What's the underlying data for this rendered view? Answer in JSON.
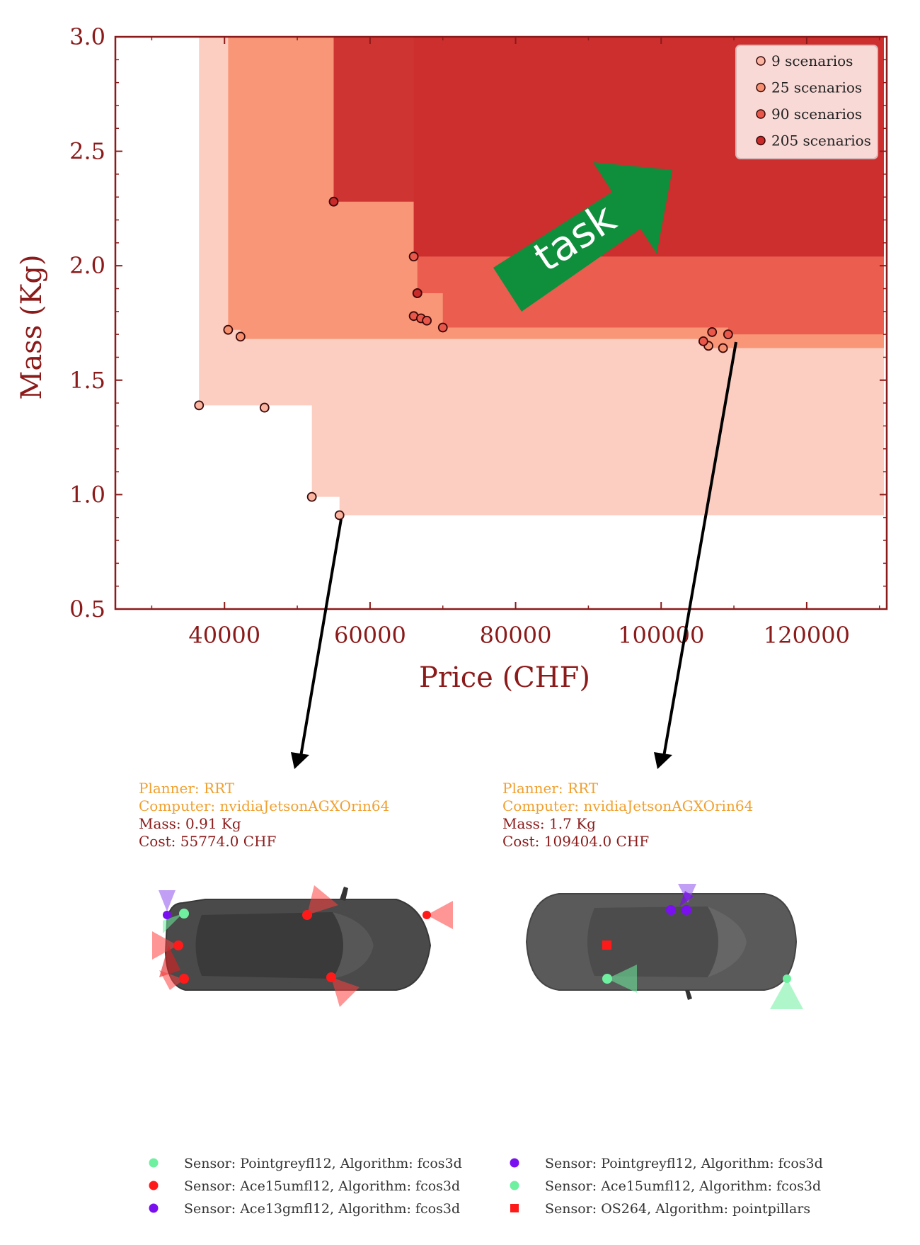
{
  "chart_data": {
    "type": "scatter",
    "xlabel": "Price (CHF)",
    "ylabel": "Mass (Kg)",
    "xlim": [
      25000,
      131000
    ],
    "ylim": [
      0.5,
      3.0
    ],
    "xticks": [
      40000,
      60000,
      80000,
      100000,
      120000
    ],
    "yticks": [
      0.5,
      1.0,
      1.5,
      2.0,
      2.5,
      3.0
    ],
    "annotation": "task",
    "legend_position": "top-right",
    "series": [
      {
        "name": "9 scenarios",
        "color": "#fbb4a0",
        "region": [
          [
            36500,
            1.39
          ],
          [
            52000,
            0.99
          ],
          [
            55800,
            0.91
          ]
        ],
        "points": [
          [
            36500,
            1.39
          ],
          [
            45500,
            1.38
          ],
          [
            52000,
            0.99
          ],
          [
            55800,
            0.91
          ]
        ]
      },
      {
        "name": "25 scenarios",
        "color": "#f7906f",
        "region": [
          [
            40500,
            1.72
          ],
          [
            42200,
            1.68
          ],
          [
            106500,
            1.64
          ]
        ],
        "points": [
          [
            40500,
            1.72
          ],
          [
            42200,
            1.69
          ],
          [
            106500,
            1.65
          ],
          [
            108500,
            1.64
          ]
        ]
      },
      {
        "name": "90 scenarios",
        "color": "#e8574a",
        "region": [
          [
            66000,
            2.04
          ],
          [
            66500,
            1.88
          ],
          [
            70000,
            1.73
          ],
          [
            109200,
            1.7
          ]
        ],
        "points": [
          [
            66000,
            2.04
          ],
          [
            66500,
            1.88
          ],
          [
            66000,
            1.78
          ],
          [
            67000,
            1.77
          ],
          [
            67800,
            1.76
          ],
          [
            70000,
            1.73
          ],
          [
            105800,
            1.67
          ],
          [
            107000,
            1.71
          ],
          [
            109200,
            1.7
          ]
        ]
      },
      {
        "name": "205 scenarios",
        "color": "#c92a2a",
        "region": [
          [
            55000,
            2.28
          ],
          [
            66000,
            2.04
          ]
        ],
        "points": [
          [
            55000,
            2.28
          ],
          [
            66500,
            1.88
          ]
        ]
      }
    ]
  },
  "configs": [
    {
      "planner": "Planner: RRT",
      "computer": "Computer: nvidiaJetsonAGXOrin64",
      "mass": "Mass: 0.91 Kg",
      "cost": "Cost: 55774.0 CHF"
    },
    {
      "planner": "Planner: RRT",
      "computer": "Computer: nvidiaJetsonAGXOrin64",
      "mass": "Mass: 1.7 Kg",
      "cost": "Cost: 109404.0 CHF"
    }
  ],
  "sensor_legend": {
    "left": [
      {
        "label": "Sensor: Pointgreyfl12, Algorithm: fcos3d",
        "color": "#6ef0a0",
        "marker": "circle"
      },
      {
        "label": "Sensor: Ace15umfl12, Algorithm: fcos3d",
        "color": "#ff1a1a",
        "marker": "circle"
      },
      {
        "label": "Sensor: Ace13gmfl12, Algorithm: fcos3d",
        "color": "#7a10f0",
        "marker": "circle"
      }
    ],
    "right": [
      {
        "label": "Sensor: Pointgreyfl12, Algorithm: fcos3d",
        "color": "#7a10f0",
        "marker": "circle"
      },
      {
        "label": "Sensor: Ace15umfl12, Algorithm: fcos3d",
        "color": "#6ef0a0",
        "marker": "circle"
      },
      {
        "label": "Sensor: OS264, Algorithm: pointpillars",
        "color": "#ff1a1a",
        "marker": "square"
      }
    ]
  }
}
